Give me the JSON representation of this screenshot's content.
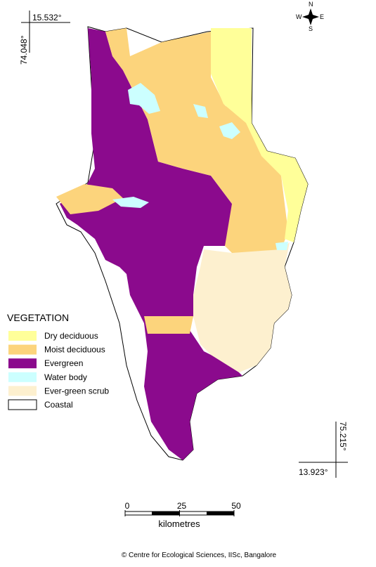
{
  "coordinates": {
    "top_left_lat": "15.532°",
    "top_left_lon": "74.048°",
    "bottom_right_lat": "13.923°",
    "bottom_right_lon": "75.215°"
  },
  "compass": {
    "north": "N",
    "west": "W",
    "east": "E",
    "south": "S"
  },
  "legend": {
    "title": "VEGETATION",
    "items": [
      {
        "label": "Dry deciduous",
        "color": "#ffff99"
      },
      {
        "label": "Moist deciduous",
        "color": "#fcd47c"
      },
      {
        "label": "Evergreen",
        "color": "#8b0a8d"
      },
      {
        "label": "Water body",
        "color": "#ccffff"
      },
      {
        "label": "Ever-green scrub",
        "color": "#fdf0cf"
      },
      {
        "label": "Coastal",
        "color": "#ffffff"
      }
    ]
  },
  "scale": {
    "ticks": [
      0,
      25,
      50
    ],
    "unit": "kilometres"
  },
  "credit": "© Centre for Ecological Sciences, IISc, Bangalore"
}
